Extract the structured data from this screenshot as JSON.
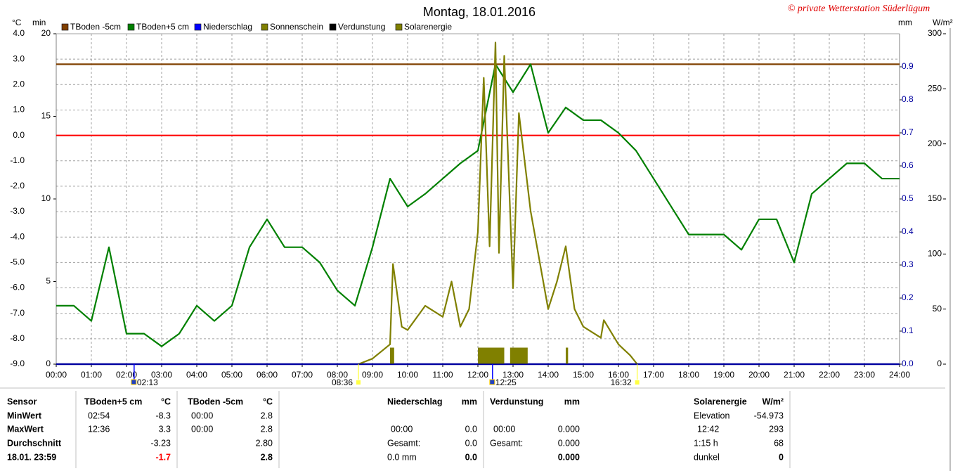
{
  "chart_data": {
    "type": "line",
    "title": "Montag, 18.01.2016",
    "copyright": "© private Wetterstation Süderlügum",
    "ylabel": "°C",
    "ymin_label": "min",
    "y2label": "mm",
    "y3label": "W/m²",
    "xlim": [
      "00:00",
      "24:00"
    ],
    "xticks": [
      "00:00",
      "01:00",
      "02:00",
      "03:00",
      "04:00",
      "05:00",
      "06:00",
      "07:00",
      "08:00",
      "09:00",
      "10:00",
      "11:00",
      "12:00",
      "13:00",
      "14:00",
      "15:00",
      "16:00",
      "17:00",
      "18:00",
      "19:00",
      "20:00",
      "21:00",
      "22:00",
      "23:00",
      "24:00"
    ],
    "ylim": [
      -9,
      4
    ],
    "yticks": [
      {
        "value": 4,
        "label": "4.0"
      },
      {
        "value": 3,
        "label": "3.0"
      },
      {
        "value": 2,
        "label": "2.0"
      },
      {
        "value": 1,
        "label": "1.0"
      },
      {
        "value": 0,
        "label": "0.0"
      },
      {
        "value": -1,
        "label": "-1.0"
      },
      {
        "value": -2,
        "label": "-2.0"
      },
      {
        "value": -3,
        "label": "-3.0"
      },
      {
        "value": -4,
        "label": "-4.0"
      },
      {
        "value": -5,
        "label": "-5.0"
      },
      {
        "value": -6,
        "label": "-6.0"
      },
      {
        "value": -7,
        "label": "-7.0"
      },
      {
        "value": -8,
        "label": "-8.0"
      },
      {
        "value": -9,
        "label": "-9.0"
      }
    ],
    "ymin_lim": [
      0,
      20
    ],
    "ymin_ticks": [
      0,
      5,
      10,
      15,
      20
    ],
    "y2lim": [
      0,
      1
    ],
    "y2ticks": [
      {
        "value": 0,
        "label": "0.0"
      },
      {
        "value": 0.1,
        "label": "0.1"
      },
      {
        "value": 0.2,
        "label": "0.2"
      },
      {
        "value": 0.3,
        "label": "0.3"
      },
      {
        "value": 0.4,
        "label": "0.4"
      },
      {
        "value": 0.5,
        "label": "0.5"
      },
      {
        "value": 0.6,
        "label": "0.6"
      },
      {
        "value": 0.7,
        "label": "0.7"
      },
      {
        "value": 0.8,
        "label": "0.8"
      },
      {
        "value": 0.9,
        "label": "0.9"
      }
    ],
    "y3lim": [
      0,
      300
    ],
    "y3ticks": [
      0,
      50,
      100,
      150,
      200,
      250,
      300
    ],
    "grid": true,
    "reference_lines": [
      {
        "value": 0,
        "color": "#ff0000"
      }
    ],
    "markers": [
      "02:13",
      "08:36",
      "12:25",
      "16:32"
    ],
    "series": [
      {
        "name": "TBoden -5cm",
        "color": "#804000",
        "axis": "y",
        "x": [
          "00:00",
          "24:00"
        ],
        "values": [
          2.8,
          2.8
        ]
      },
      {
        "name": "TBoden+5 cm",
        "color": "#008000",
        "axis": "y",
        "x": [
          "00:00",
          "00:30",
          "01:00",
          "01:30",
          "02:00",
          "02:30",
          "03:00",
          "03:30",
          "04:00",
          "04:30",
          "05:00",
          "05:30",
          "06:00",
          "06:30",
          "07:00",
          "07:30",
          "08:00",
          "08:30",
          "09:00",
          "09:30",
          "10:00",
          "10:30",
          "11:00",
          "11:30",
          "12:00",
          "12:30",
          "13:00",
          "13:30",
          "14:00",
          "14:30",
          "15:00",
          "15:30",
          "16:00",
          "16:30",
          "17:00",
          "17:30",
          "18:00",
          "18:30",
          "19:00",
          "19:30",
          "20:00",
          "20:30",
          "21:00",
          "21:30",
          "22:00",
          "22:30",
          "23:00",
          "23:30",
          "24:00"
        ],
        "values": [
          -6.7,
          -6.7,
          -7.3,
          -4.4,
          -7.8,
          -7.8,
          -8.3,
          -7.8,
          -6.7,
          -7.3,
          -6.7,
          -4.4,
          -3.3,
          -4.4,
          -4.4,
          -5.0,
          -6.1,
          -6.7,
          -4.4,
          -1.7,
          -2.8,
          -2.3,
          -1.7,
          -1.1,
          -0.6,
          2.8,
          1.7,
          2.8,
          0.1,
          1.1,
          0.6,
          0.6,
          0.1,
          -0.6,
          -1.7,
          -2.8,
          -3.9,
          -3.9,
          -3.9,
          -4.5,
          -3.3,
          -3.3,
          -5.0,
          -2.3,
          -1.7,
          -1.1,
          -1.1,
          -1.7,
          -1.7
        ]
      },
      {
        "name": "Niederschlag",
        "color": "#0000ff",
        "axis": "y2",
        "x": [
          "00:00",
          "24:00"
        ],
        "values": [
          0,
          0
        ]
      },
      {
        "name": "Sonnenschein",
        "color": "#808000",
        "axis": "ymin",
        "kind": "bar",
        "x": [
          "09:30",
          "12:00",
          "12:55",
          "14:30"
        ],
        "x_end": [
          "09:37",
          "12:45",
          "13:25",
          "14:34"
        ],
        "values": [
          1,
          1,
          1,
          1
        ]
      },
      {
        "name": "Verdunstung",
        "color": "#000000",
        "axis": "y2",
        "x": [
          "00:00",
          "24:00"
        ],
        "values": [
          0,
          0
        ]
      },
      {
        "name": "Solarenergie",
        "color": "#808000",
        "axis": "y3",
        "x": [
          "08:36",
          "09:00",
          "09:30",
          "09:35",
          "09:50",
          "10:00",
          "10:30",
          "11:00",
          "11:15",
          "11:30",
          "11:45",
          "12:00",
          "12:10",
          "12:20",
          "12:30",
          "12:36",
          "12:45",
          "13:00",
          "13:10",
          "13:30",
          "14:00",
          "14:15",
          "14:30",
          "14:45",
          "15:00",
          "15:30",
          "15:35",
          "16:00",
          "16:20",
          "16:32"
        ],
        "values": [
          0,
          5,
          18,
          91,
          34,
          31,
          53,
          43,
          75,
          34,
          50,
          120,
          260,
          107,
          292,
          101,
          280,
          69,
          228,
          139,
          50,
          75,
          107,
          50,
          34,
          24,
          40,
          18,
          8,
          0
        ]
      }
    ]
  },
  "table": {
    "rows": [
      [
        "Sensor",
        "TBoden+5 cm",
        "°C",
        "TBoden -5cm",
        "°C",
        "Niederschlag",
        "mm",
        "Verdunstung",
        "mm",
        "Solarenergie",
        "W/m²"
      ],
      [
        "MinWert",
        "02:54",
        "-8.3",
        "00:00",
        "2.8",
        null,
        null,
        null,
        null,
        "Elevation",
        "-54.973"
      ],
      [
        "MaxWert",
        "12:36",
        "3.3",
        "00:00",
        "2.8",
        "00:00",
        "0.0",
        "00:00",
        "0.000",
        "12:42",
        "293"
      ],
      [
        "Durchschnitt",
        null,
        "-3.23",
        null,
        "2.80",
        "Gesamt:",
        "0.0",
        "Gesamt:",
        "0.000",
        "1:15 h",
        "68"
      ],
      [
        "18.01. 23:59",
        null,
        "-1.7",
        null,
        "2.8",
        "0.0 mm",
        "0.0",
        null,
        "0.000",
        "dunkel",
        "0"
      ]
    ]
  }
}
